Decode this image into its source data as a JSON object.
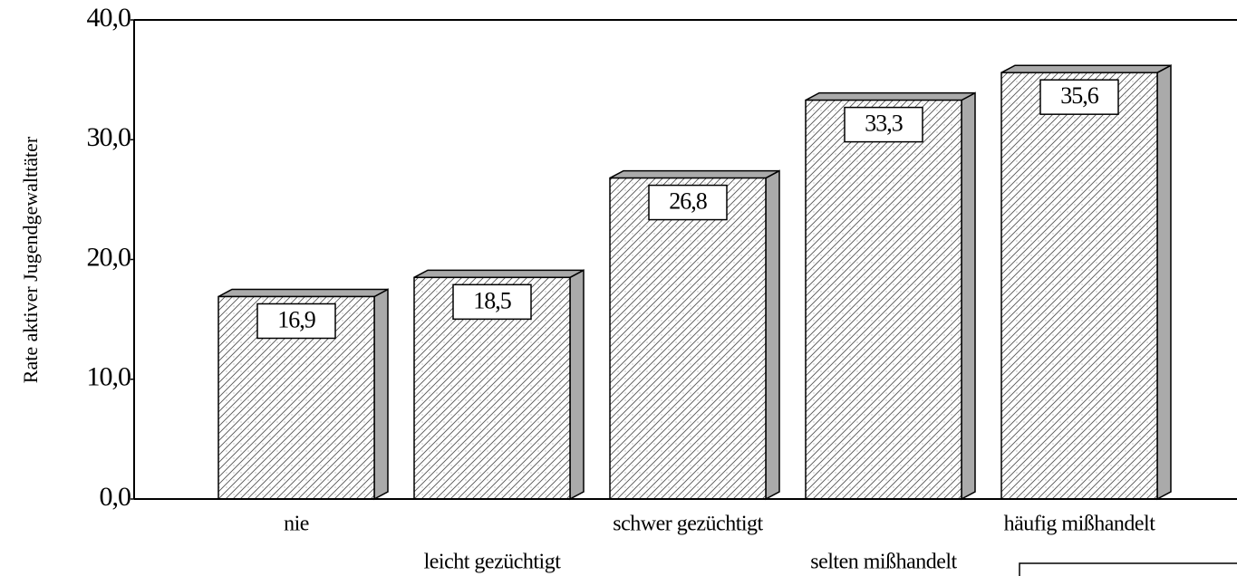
{
  "chart_data": {
    "type": "bar",
    "y_label": "Rate aktiver Jugendgewalttäter",
    "categories": [
      "nie",
      "leicht gezüchtigt",
      "schwer gezüchtigt",
      "selten mißhandelt",
      "häufig mißhandelt"
    ],
    "values": [
      16.9,
      18.5,
      26.8,
      33.3,
      35.6
    ],
    "value_labels": [
      "16,9",
      "18,5",
      "26,8",
      "33,3",
      "35,6"
    ],
    "color": "#ffffff",
    "ylim": [
      0,
      40
    ],
    "yticks": [
      {
        "value": 0,
        "label": "0,0"
      },
      {
        "value": 10,
        "label": "10,0"
      },
      {
        "value": 20,
        "label": "20,0"
      },
      {
        "value": 30,
        "label": "30,0"
      },
      {
        "value": 40,
        "label": "40,0"
      }
    ]
  }
}
